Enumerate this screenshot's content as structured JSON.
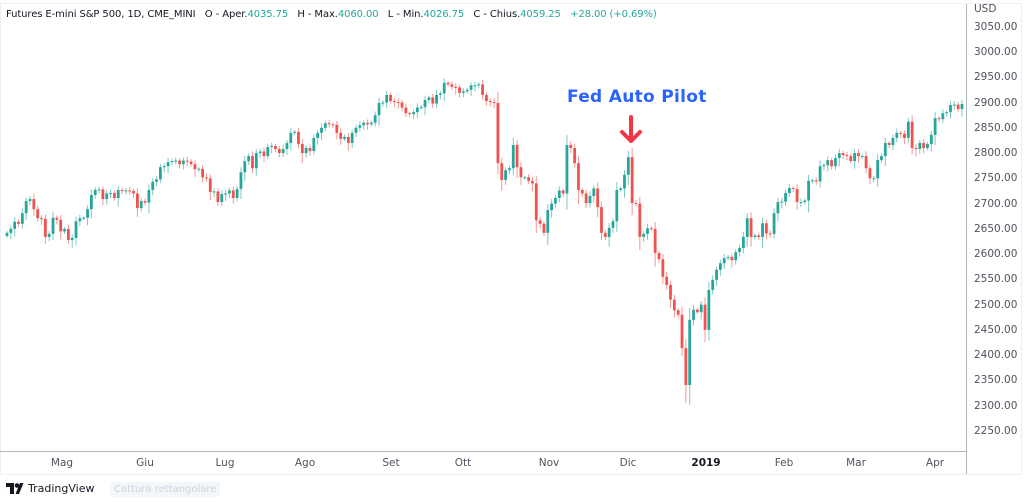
{
  "legend": {
    "symbol": "Futures E-mini S&P 500, 1D, CME_MINI",
    "open_label": "O - Aper.",
    "open": "4035.75",
    "high_label": "H - Max.",
    "high": "4060.00",
    "low_label": "L - Min.",
    "low": "4026.75",
    "close_label": "C - Chius.",
    "close": "4059.25",
    "change": "+28.00 (+0.69%)"
  },
  "currency": "USD",
  "capture_hint": "Cattura rettangolare",
  "brand": "TradingView",
  "colors": {
    "up": "#26a69a",
    "down": "#ef5350",
    "annotation": "#2962ff",
    "arrow": "#f23645"
  },
  "chart_data": {
    "type": "candlestick",
    "title": "",
    "y_axis_ticks": [
      "3050.00",
      "3000.00",
      "2950.00",
      "2900.00",
      "2850.00",
      "2800.00",
      "2750.00",
      "2700.00",
      "2650.00",
      "2600.00",
      "2550.00",
      "2500.00",
      "2450.00",
      "2400.00",
      "2350.00",
      "2300.00",
      "2250.00"
    ],
    "ylim": [
      2215,
      3085
    ],
    "x_axis_ticks": [
      "Mag",
      "Giu",
      "Lug",
      "Ago",
      "Set",
      "Ott",
      "Nov",
      "Dic",
      "2019",
      "Feb",
      "Mar",
      "Apr"
    ],
    "annotation": {
      "text": "Fed Auto Pilot",
      "icon": "arrow-down-icon",
      "price": 2810
    },
    "closes": [
      2642,
      2650,
      2664,
      2660,
      2681,
      2705,
      2709,
      2689,
      2671,
      2670,
      2634,
      2640,
      2672,
      2668,
      2645,
      2650,
      2628,
      2632,
      2665,
      2671,
      2672,
      2689,
      2717,
      2727,
      2728,
      2709,
      2720,
      2721,
      2711,
      2727,
      2725,
      2726,
      2725,
      2720,
      2691,
      2705,
      2702,
      2727,
      2743,
      2748,
      2772,
      2774,
      2782,
      2784,
      2785,
      2778,
      2785,
      2783,
      2778,
      2768,
      2769,
      2752,
      2750,
      2723,
      2724,
      2703,
      2719,
      2720,
      2726,
      2711,
      2729,
      2762,
      2784,
      2794,
      2770,
      2800,
      2803,
      2794,
      2812,
      2814,
      2808,
      2800,
      2808,
      2820,
      2840,
      2842,
      2818,
      2800,
      2810,
      2804,
      2830,
      2840,
      2850,
      2859,
      2857,
      2856,
      2840,
      2828,
      2832,
      2820,
      2840,
      2850,
      2855,
      2860,
      2857,
      2860,
      2875,
      2899,
      2900,
      2915,
      2903,
      2901,
      2900,
      2890,
      2879,
      2877,
      2881,
      2890,
      2891,
      2905,
      2910,
      2898,
      2915,
      2918,
      2939,
      2936,
      2931,
      2930,
      2919,
      2922,
      2925,
      2934,
      2934,
      2936,
      2915,
      2903,
      2901,
      2899,
      2780,
      2747,
      2766,
      2770,
      2816,
      2772,
      2752,
      2752,
      2745,
      2740,
      2667,
      2660,
      2642,
      2687,
      2700,
      2711,
      2726,
      2720,
      2816,
      2810,
      2780,
      2727,
      2720,
      2701,
      2715,
      2730,
      2693,
      2642,
      2634,
      2652,
      2665,
      2727,
      2730,
      2757,
      2792,
      2701,
      2700,
      2634,
      2640,
      2651,
      2650,
      2602,
      2590,
      2555,
      2539,
      2510,
      2489,
      2480,
      2414,
      2341,
      2470,
      2490,
      2485,
      2500,
      2450,
      2529,
      2549,
      2569,
      2582,
      2592,
      2594,
      2588,
      2604,
      2612,
      2634,
      2671,
      2634,
      2637,
      2634,
      2661,
      2641,
      2640,
      2681,
      2703,
      2704,
      2721,
      2731,
      2729,
      2703,
      2703,
      2706,
      2745,
      2746,
      2744,
      2774,
      2776,
      2786,
      2774,
      2790,
      2800,
      2796,
      2794,
      2784,
      2800,
      2794,
      2794,
      2770,
      2750,
      2750,
      2786,
      2794,
      2820,
      2816,
      2830,
      2840,
      2838,
      2830,
      2862,
      2810,
      2808,
      2820,
      2810,
      2818,
      2836,
      2869,
      2867,
      2879,
      2881,
      2895,
      2896,
      2887,
      2897
    ]
  }
}
